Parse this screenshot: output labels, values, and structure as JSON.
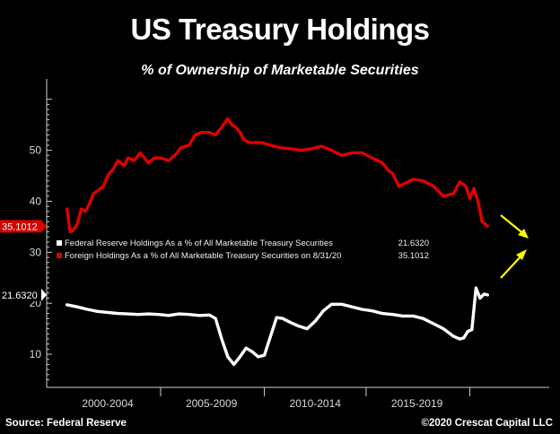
{
  "title": "US Treasury Holdings",
  "subtitle": "% of Ownership of Marketable Securities",
  "source": "Source: Federal Reserve",
  "credit": "©2020 Crescat Capital LLC",
  "chart_data": {
    "type": "line",
    "ylim": [
      3.5,
      64
    ],
    "yticks": [
      10,
      20,
      30,
      40,
      50
    ],
    "xlim": [
      1999.0,
      2023.7
    ],
    "xticks": [
      {
        "label": "2000-2004",
        "pos": 2002.0
      },
      {
        "label": "2005-2009",
        "pos": 2007.1
      },
      {
        "label": "2010-2014",
        "pos": 2012.2
      },
      {
        "label": "2015-2019",
        "pos": 2017.2
      }
    ],
    "xseparators": [
      2004.6,
      2009.7,
      2014.7,
      2019.8
    ],
    "legend": [
      {
        "label": "Federal Reserve Holdings As a % of All Marketable Treasury Securities",
        "value": "21.6320",
        "color": "#ffffff"
      },
      {
        "label": "Foreign Holdings As a % of All Marketable Treasury Securities on 8/31/20",
        "value": "35.1012",
        "color": "#e00000"
      }
    ],
    "last_value_tags": [
      {
        "text": "35.1012",
        "value": 35.1012,
        "bg": "#d40000",
        "fg": "#ffffff"
      },
      {
        "text": "21.6320",
        "value": 21.632,
        "bg": "#000000",
        "fg": "#ffffff"
      }
    ],
    "series": [
      {
        "color": "#e00000",
        "x": [
          2000.0,
          2000.15,
          2000.3,
          2000.5,
          2000.7,
          2000.9,
          2001.1,
          2001.3,
          2001.5,
          2001.8,
          2002.0,
          2002.3,
          2002.5,
          2002.8,
          2003.0,
          2003.3,
          2003.6,
          2004.0,
          2004.3,
          2004.6,
          2005.0,
          2005.3,
          2005.6,
          2006.0,
          2006.3,
          2006.6,
          2007.0,
          2007.3,
          2007.6,
          2007.9,
          2008.1,
          2008.3,
          2008.5,
          2008.7,
          2009.0,
          2009.3,
          2009.6,
          2010.0,
          2010.5,
          2011.0,
          2011.5,
          2012.0,
          2012.5,
          2013.0,
          2013.5,
          2014.0,
          2014.5,
          2015.0,
          2015.5,
          2015.8,
          2016.0,
          2016.3,
          2016.6,
          2017.0,
          2017.5,
          2018.0,
          2018.5,
          2019.0,
          2019.3,
          2019.6,
          2019.8,
          2020.0,
          2020.2,
          2020.4,
          2020.67
        ],
        "values": [
          38.5,
          34.0,
          34.3,
          35.5,
          38.5,
          38.0,
          39.5,
          41.5,
          42.0,
          43.0,
          45.0,
          46.5,
          48.0,
          47.0,
          48.5,
          48.0,
          49.5,
          47.5,
          48.5,
          48.5,
          48.0,
          49.0,
          50.5,
          51.0,
          53.0,
          53.5,
          53.5,
          53.0,
          54.5,
          56.2,
          55.0,
          54.5,
          53.5,
          52.0,
          51.5,
          51.5,
          51.5,
          51.0,
          50.5,
          50.3,
          50.0,
          50.3,
          50.8,
          50.0,
          49.0,
          49.5,
          49.5,
          48.5,
          47.5,
          46.0,
          45.5,
          43.0,
          43.5,
          44.3,
          44.0,
          43.0,
          41.0,
          41.5,
          43.8,
          43.0,
          40.5,
          42.5,
          40.0,
          36.0,
          35.1012
        ]
      },
      {
        "color": "#ffffff",
        "x": [
          2000.0,
          2000.5,
          2001.0,
          2001.5,
          2002.0,
          2002.5,
          2003.0,
          2003.5,
          2004.0,
          2004.5,
          2005.0,
          2005.5,
          2006.0,
          2006.5,
          2007.0,
          2007.3,
          2007.6,
          2007.9,
          2008.2,
          2008.5,
          2008.8,
          2009.1,
          2009.4,
          2009.7,
          2010.0,
          2010.3,
          2010.6,
          2011.0,
          2011.4,
          2011.8,
          2012.2,
          2012.6,
          2013.0,
          2013.5,
          2014.0,
          2014.5,
          2015.0,
          2015.5,
          2016.0,
          2016.5,
          2017.0,
          2017.5,
          2018.0,
          2018.5,
          2019.0,
          2019.3,
          2019.5,
          2019.7,
          2019.9,
          2020.1,
          2020.3,
          2020.5,
          2020.67
        ],
        "values": [
          19.7,
          19.3,
          18.8,
          18.4,
          18.2,
          18.0,
          17.9,
          17.8,
          17.9,
          17.8,
          17.6,
          17.9,
          17.8,
          17.6,
          17.7,
          17.0,
          13.0,
          9.5,
          8.0,
          9.5,
          11.2,
          10.5,
          9.5,
          9.8,
          13.5,
          17.2,
          17.0,
          16.2,
          15.5,
          15.0,
          16.5,
          18.5,
          19.8,
          19.8,
          19.3,
          18.8,
          18.5,
          18.0,
          17.8,
          17.5,
          17.5,
          17.0,
          16.0,
          15.0,
          13.5,
          13.0,
          13.2,
          14.5,
          14.8,
          23.0,
          21.0,
          21.8,
          21.632
        ]
      }
    ]
  }
}
